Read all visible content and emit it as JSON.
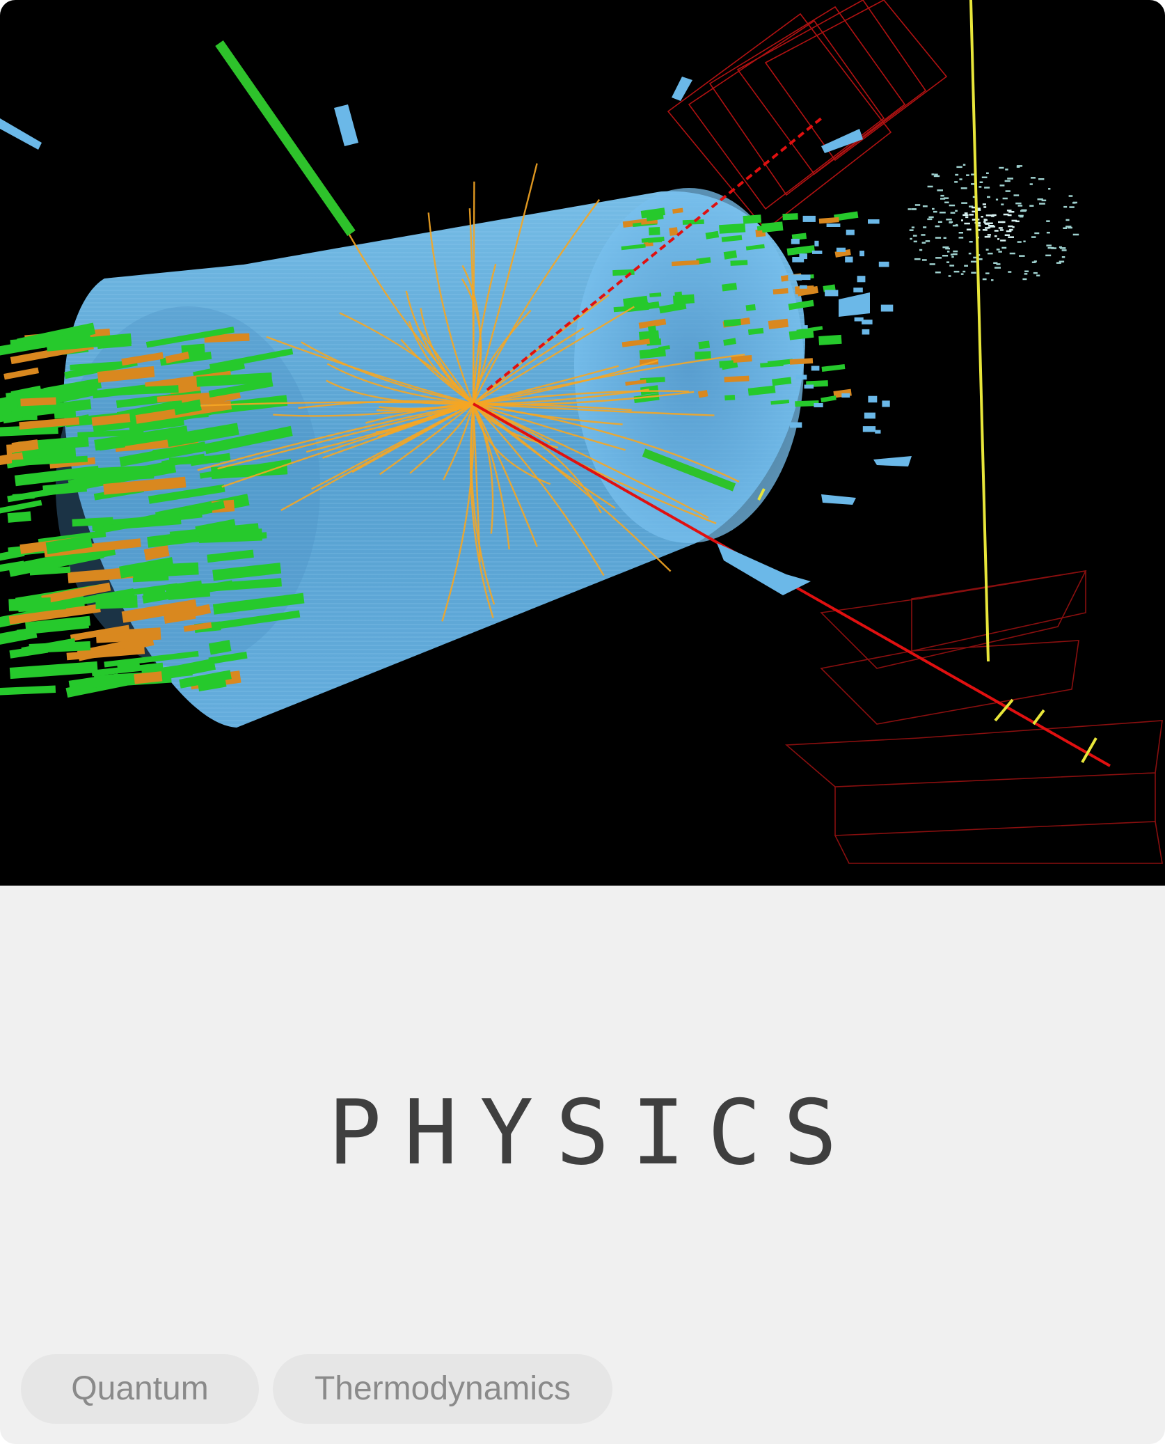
{
  "card": {
    "title": "PHYSICS",
    "image": {
      "name": "particle-collision-event-display",
      "colors": {
        "background": "#000000",
        "detector": "#6bb8e8",
        "tracks": "#f5a623",
        "calorimeter": "#26c92c",
        "energy": "#d9881f",
        "muon": "#e01010",
        "chambers": "#9b0f0f"
      }
    },
    "tags": [
      {
        "label": "Quantum"
      },
      {
        "label": "Thermodynamics"
      }
    ]
  }
}
